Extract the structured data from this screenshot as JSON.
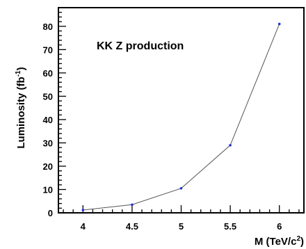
{
  "chart_data": {
    "type": "line",
    "annotation": "KK Z production",
    "xlabel": "M (TeV/c",
    "xlabel_sup": "2",
    "xlabel_end": ")",
    "ylabel": "Luminosity (fb",
    "ylabel_sup": "-1",
    "ylabel_end": ")",
    "xlim": [
      3.75,
      6.25
    ],
    "ylim": [
      0,
      88
    ],
    "x_ticks": [
      4,
      4.5,
      5,
      5.5,
      6
    ],
    "x_tick_labels": [
      "4",
      "4.5",
      "5",
      "5.5",
      "6"
    ],
    "y_ticks": [
      0,
      10,
      20,
      30,
      40,
      50,
      60,
      70,
      80
    ],
    "y_tick_labels": [
      "0",
      "10",
      "20",
      "30",
      "40",
      "50",
      "60",
      "70",
      "80"
    ],
    "grid": false,
    "series": [
      {
        "x": [
          4,
          4.5,
          5,
          5.5,
          6
        ],
        "y": [
          1.2,
          3.5,
          10.5,
          29,
          81
        ]
      }
    ],
    "colors": {
      "line": "#555555",
      "marker": "#2233dd",
      "axis": "#000000"
    }
  }
}
